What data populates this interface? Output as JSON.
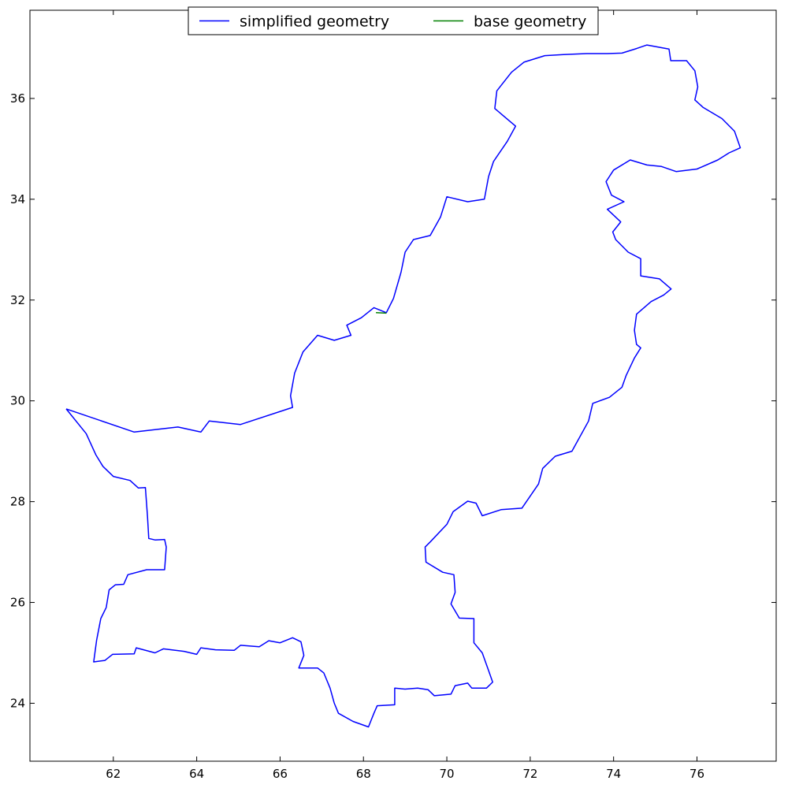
{
  "chart_data": {
    "type": "line",
    "title": "",
    "xlabel": "",
    "ylabel": "",
    "xlim": [
      60.0,
      77.9
    ],
    "ylim": [
      22.85,
      37.75
    ],
    "xticks": [
      62,
      64,
      66,
      68,
      70,
      72,
      74,
      76
    ],
    "yticks": [
      24,
      26,
      28,
      30,
      32,
      34,
      36
    ],
    "x_tick_labels": [
      "62",
      "64",
      "66",
      "68",
      "70",
      "72",
      "74",
      "76"
    ],
    "y_tick_labels": [
      "24",
      "26",
      "28",
      "30",
      "32",
      "34",
      "36"
    ],
    "grid": false,
    "legend_position": "top-center",
    "series": [
      {
        "name": "simplified geometry",
        "color": "#0000ff",
        "points": [
          [
            60.87,
            29.84
          ],
          [
            61.35,
            29.35
          ],
          [
            61.58,
            28.93
          ],
          [
            61.75,
            28.7
          ],
          [
            62.0,
            28.5
          ],
          [
            62.4,
            28.42
          ],
          [
            62.6,
            28.27
          ],
          [
            62.77,
            28.28
          ],
          [
            62.82,
            27.7
          ],
          [
            62.85,
            27.27
          ],
          [
            63.0,
            27.24
          ],
          [
            63.23,
            27.25
          ],
          [
            63.27,
            27.1
          ],
          [
            63.23,
            26.65
          ],
          [
            62.8,
            26.65
          ],
          [
            62.35,
            26.55
          ],
          [
            62.25,
            26.36
          ],
          [
            62.05,
            26.35
          ],
          [
            61.9,
            26.25
          ],
          [
            61.83,
            25.9
          ],
          [
            61.7,
            25.68
          ],
          [
            61.6,
            25.25
          ],
          [
            61.53,
            24.82
          ],
          [
            61.8,
            24.85
          ],
          [
            61.98,
            24.97
          ],
          [
            62.5,
            24.98
          ],
          [
            62.55,
            25.1
          ],
          [
            63.0,
            25.0
          ],
          [
            63.2,
            25.08
          ],
          [
            63.7,
            25.03
          ],
          [
            64.0,
            24.97
          ],
          [
            64.1,
            25.1
          ],
          [
            64.45,
            25.06
          ],
          [
            64.9,
            25.05
          ],
          [
            65.05,
            25.15
          ],
          [
            65.5,
            25.12
          ],
          [
            65.73,
            25.24
          ],
          [
            66.0,
            25.2
          ],
          [
            66.3,
            25.3
          ],
          [
            66.5,
            25.22
          ],
          [
            66.57,
            24.95
          ],
          [
            66.45,
            24.7
          ],
          [
            66.9,
            24.7
          ],
          [
            67.05,
            24.6
          ],
          [
            67.2,
            24.3
          ],
          [
            67.3,
            24.0
          ],
          [
            67.4,
            23.8
          ],
          [
            67.75,
            23.64
          ],
          [
            68.12,
            23.53
          ],
          [
            68.25,
            23.8
          ],
          [
            68.33,
            23.95
          ],
          [
            68.75,
            23.97
          ],
          [
            68.75,
            24.3
          ],
          [
            69.0,
            24.28
          ],
          [
            69.3,
            24.3
          ],
          [
            69.55,
            24.27
          ],
          [
            69.7,
            24.15
          ],
          [
            70.1,
            24.18
          ],
          [
            70.2,
            24.35
          ],
          [
            70.5,
            24.4
          ],
          [
            70.6,
            24.3
          ],
          [
            70.95,
            24.3
          ],
          [
            71.1,
            24.42
          ],
          [
            71.0,
            24.65
          ],
          [
            70.85,
            25.0
          ],
          [
            70.65,
            25.2
          ],
          [
            70.65,
            25.68
          ],
          [
            70.3,
            25.69
          ],
          [
            70.1,
            25.97
          ],
          [
            70.2,
            26.2
          ],
          [
            70.17,
            26.55
          ],
          [
            69.9,
            26.6
          ],
          [
            69.5,
            26.8
          ],
          [
            69.48,
            27.1
          ],
          [
            69.6,
            27.2
          ],
          [
            70.0,
            27.55
          ],
          [
            70.15,
            27.8
          ],
          [
            70.5,
            28.01
          ],
          [
            70.7,
            27.97
          ],
          [
            70.85,
            27.72
          ],
          [
            71.3,
            27.84
          ],
          [
            71.8,
            27.87
          ],
          [
            71.95,
            28.05
          ],
          [
            72.2,
            28.35
          ],
          [
            72.3,
            28.66
          ],
          [
            72.6,
            28.9
          ],
          [
            73.0,
            29.0
          ],
          [
            73.4,
            29.6
          ],
          [
            73.5,
            29.95
          ],
          [
            73.9,
            30.07
          ],
          [
            74.2,
            30.27
          ],
          [
            74.3,
            30.5
          ],
          [
            74.5,
            30.85
          ],
          [
            74.65,
            31.05
          ],
          [
            74.55,
            31.12
          ],
          [
            74.5,
            31.4
          ],
          [
            74.55,
            31.72
          ],
          [
            74.9,
            31.97
          ],
          [
            75.2,
            32.1
          ],
          [
            75.38,
            32.22
          ],
          [
            75.1,
            32.42
          ],
          [
            74.65,
            32.48
          ],
          [
            74.65,
            32.82
          ],
          [
            74.35,
            32.95
          ],
          [
            74.05,
            33.2
          ],
          [
            73.98,
            33.35
          ],
          [
            74.17,
            33.55
          ],
          [
            73.85,
            33.8
          ],
          [
            74.25,
            33.95
          ],
          [
            73.95,
            34.08
          ],
          [
            73.82,
            34.35
          ],
          [
            74.0,
            34.58
          ],
          [
            74.4,
            34.78
          ],
          [
            74.8,
            34.68
          ],
          [
            75.15,
            34.65
          ],
          [
            75.5,
            34.55
          ],
          [
            76.0,
            34.6
          ],
          [
            76.5,
            34.78
          ],
          [
            76.77,
            34.92
          ],
          [
            77.04,
            35.02
          ],
          [
            76.9,
            35.35
          ],
          [
            76.6,
            35.6
          ],
          [
            76.15,
            35.82
          ],
          [
            75.95,
            35.97
          ],
          [
            76.02,
            36.23
          ],
          [
            75.95,
            36.55
          ],
          [
            75.75,
            36.75
          ],
          [
            75.37,
            36.75
          ],
          [
            75.33,
            36.98
          ],
          [
            74.8,
            37.06
          ],
          [
            74.55,
            36.99
          ],
          [
            74.2,
            36.9
          ],
          [
            73.85,
            36.89
          ],
          [
            73.35,
            36.89
          ],
          [
            72.8,
            36.87
          ],
          [
            72.35,
            36.85
          ],
          [
            71.85,
            36.72
          ],
          [
            71.55,
            36.52
          ],
          [
            71.2,
            36.15
          ],
          [
            71.15,
            35.8
          ],
          [
            71.65,
            35.45
          ],
          [
            71.45,
            35.15
          ],
          [
            71.12,
            34.75
          ],
          [
            71.0,
            34.45
          ],
          [
            70.9,
            34.0
          ],
          [
            70.5,
            33.95
          ],
          [
            70.0,
            34.05
          ],
          [
            69.85,
            33.65
          ],
          [
            69.6,
            33.28
          ],
          [
            69.2,
            33.2
          ],
          [
            69.0,
            32.95
          ],
          [
            68.9,
            32.55
          ],
          [
            68.72,
            32.03
          ],
          [
            68.55,
            31.75
          ],
          [
            68.25,
            31.85
          ],
          [
            67.95,
            31.65
          ],
          [
            67.6,
            31.5
          ],
          [
            67.7,
            31.3
          ],
          [
            67.3,
            31.2
          ],
          [
            66.9,
            31.3
          ],
          [
            66.55,
            30.97
          ],
          [
            66.35,
            30.55
          ],
          [
            66.25,
            30.1
          ],
          [
            66.3,
            29.87
          ],
          [
            65.05,
            29.53
          ],
          [
            64.3,
            29.6
          ],
          [
            64.1,
            29.38
          ],
          [
            63.55,
            29.48
          ],
          [
            62.5,
            29.38
          ],
          [
            60.87,
            29.84
          ]
        ]
      },
      {
        "name": "base geometry",
        "color": "#008000",
        "points": [
          [
            68.3,
            31.75
          ],
          [
            68.55,
            31.74
          ]
        ]
      }
    ]
  }
}
